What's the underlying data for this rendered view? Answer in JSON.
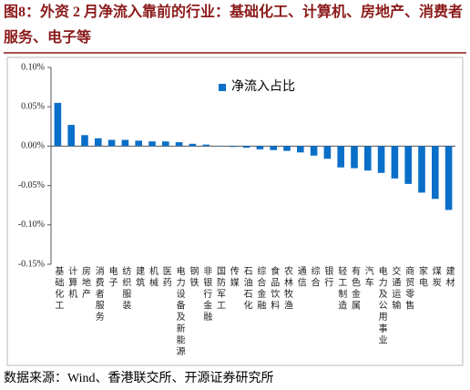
{
  "title": "图8：外资 2 月净流入靠前的行业：基础化工、计算机、房地产、消费者服务、电子等",
  "source": "数据来源：Wind、香港联交所、开源证券研究所",
  "chart_data": {
    "type": "bar",
    "categories": [
      "基础化工",
      "计算机",
      "房地产",
      "消费者服务",
      "电子",
      "纺织服装",
      "建筑",
      "机械",
      "医药",
      "电力设备及新能源",
      "钢铁",
      "非银行金融",
      "国防军工",
      "传媒",
      "石油石化",
      "综合金融",
      "食品饮料",
      "农林牧渔",
      "通信",
      "综合",
      "银行",
      "轻工制造",
      "有色金属",
      "汽车",
      "电力及公用事业",
      "交通运输",
      "商贸零售",
      "家电",
      "煤炭",
      "建材"
    ],
    "series": [
      {
        "name": "净流入占比",
        "color": "#0a6fc8",
        "values": [
          0.055,
          0.027,
          0.014,
          0.01,
          0.008,
          0.008,
          0.007,
          0.006,
          0.006,
          0.005,
          0.003,
          0.002,
          0.0005,
          -0.001,
          -0.002,
          -0.004,
          -0.005,
          -0.006,
          -0.008,
          -0.012,
          -0.016,
          -0.027,
          -0.028,
          -0.031,
          -0.034,
          -0.041,
          -0.048,
          -0.059,
          -0.067,
          -0.081
        ]
      }
    ],
    "ylim": [
      -0.15,
      0.1
    ],
    "yticks": [
      {
        "value": 0.1,
        "label": "0.10%"
      },
      {
        "value": 0.05,
        "label": "0.05%"
      },
      {
        "value": 0,
        "label": "0.00%"
      },
      {
        "value": -0.05,
        "label": "-0.05%"
      },
      {
        "value": -0.1,
        "label": "-0.10%"
      },
      {
        "value": -0.15,
        "label": "-0.15%"
      }
    ],
    "legend": "top-left"
  }
}
